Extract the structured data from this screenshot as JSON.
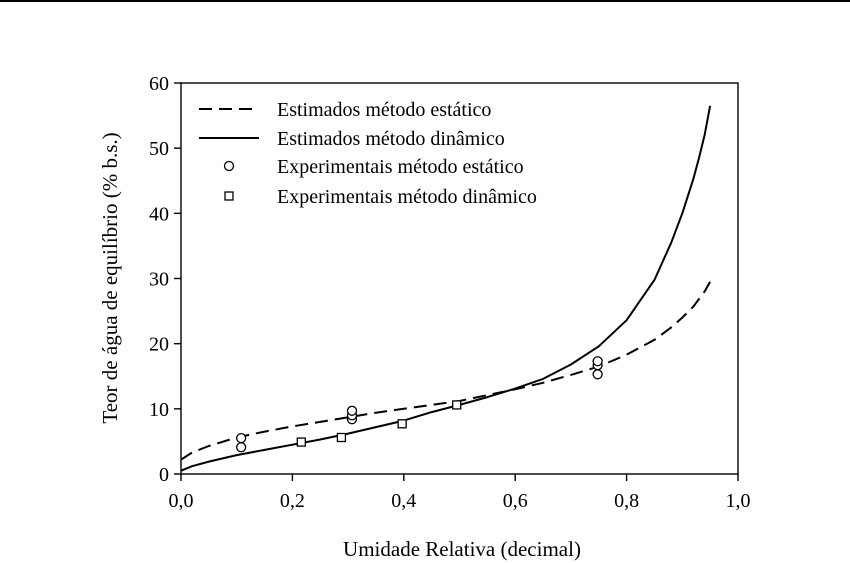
{
  "chart_data": {
    "type": "line",
    "title": "",
    "xlabel": "Umidade Relativa (decimal)",
    "ylabel": "Teor de água de equilíbrio (% b.s.)",
    "xlim": [
      0.0,
      1.0
    ],
    "ylim": [
      0,
      60
    ],
    "xticks": [
      0.0,
      0.2,
      0.4,
      0.6,
      0.8,
      1.0
    ],
    "xtick_labels": [
      "0,0",
      "0,2",
      "0,4",
      "0,6",
      "0,8",
      "1,0"
    ],
    "yticks": [
      0,
      10,
      20,
      30,
      40,
      50,
      60
    ],
    "ytick_labels": [
      "0",
      "10",
      "20",
      "30",
      "40",
      "50",
      "60"
    ],
    "grid": false,
    "legend_position": "top-left",
    "series": [
      {
        "name": "Estimados método estático",
        "kind": "line",
        "style": "dashed",
        "x": [
          0.0,
          0.02,
          0.05,
          0.1,
          0.15,
          0.2,
          0.25,
          0.3,
          0.35,
          0.4,
          0.45,
          0.5,
          0.55,
          0.6,
          0.65,
          0.7,
          0.75,
          0.8,
          0.85,
          0.88,
          0.9,
          0.92,
          0.94,
          0.95
        ],
        "y": [
          2.2,
          3.3,
          4.3,
          5.6,
          6.5,
          7.3,
          8.0,
          8.7,
          9.4,
          10.0,
          10.6,
          11.2,
          12.1,
          13.0,
          14.0,
          15.2,
          16.5,
          18.3,
          20.6,
          22.5,
          24.0,
          25.7,
          28.0,
          29.5
        ]
      },
      {
        "name": "Estimados método dinâmico",
        "kind": "line",
        "style": "solid",
        "x": [
          0.0,
          0.02,
          0.05,
          0.1,
          0.15,
          0.2,
          0.25,
          0.3,
          0.35,
          0.4,
          0.45,
          0.5,
          0.55,
          0.6,
          0.65,
          0.7,
          0.75,
          0.8,
          0.85,
          0.88,
          0.9,
          0.92,
          0.93,
          0.94,
          0.95
        ],
        "y": [
          0.5,
          1.2,
          1.9,
          2.9,
          3.7,
          4.5,
          5.3,
          6.2,
          7.2,
          8.2,
          9.5,
          10.6,
          11.8,
          13.1,
          14.6,
          16.8,
          19.6,
          23.6,
          29.8,
          35.5,
          40.0,
          45.3,
          48.5,
          52.0,
          56.5
        ]
      },
      {
        "name": "Experimentais método estático",
        "kind": "scatter",
        "marker": "circle",
        "x": [
          0.108,
          0.108,
          0.307,
          0.307,
          0.307,
          0.748,
          0.748,
          0.748
        ],
        "y": [
          4.1,
          5.5,
          8.4,
          9.0,
          9.7,
          15.3,
          16.7,
          17.3
        ]
      },
      {
        "name": "Experimentais método dinâmico",
        "kind": "scatter",
        "marker": "square",
        "x": [
          0.216,
          0.288,
          0.397,
          0.495
        ],
        "y": [
          4.9,
          5.6,
          7.7,
          10.6
        ]
      }
    ]
  }
}
